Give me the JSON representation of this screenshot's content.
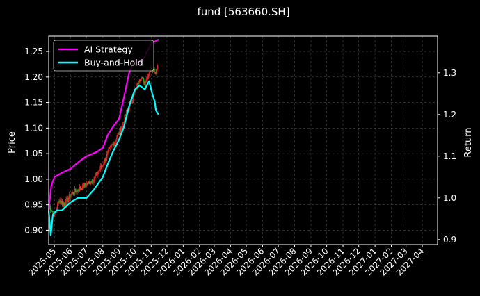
{
  "chart_data": {
    "type": "line",
    "title": "fund [563660.SH]",
    "ylabel": "Price",
    "y2label": "Return",
    "grid": true,
    "legend_position": "top-left",
    "ylim": [
      0.872,
      1.28
    ],
    "y_ticks": [
      "0.90",
      "0.95",
      "1.00",
      "1.05",
      "1.10",
      "1.15",
      "1.20",
      "1.25"
    ],
    "y2lim": [
      0.888,
      1.388
    ],
    "y2_ticks": [
      "0.9",
      "1.0",
      "1.1",
      "1.2",
      "1.3"
    ],
    "x_ticks": [
      "2025-05",
      "2025-06",
      "2025-07",
      "2025-08",
      "2025-09",
      "2025-10",
      "2025-11",
      "2025-12",
      "2026-01",
      "2026-02",
      "2026-03",
      "2026-04",
      "2026-05",
      "2026-06",
      "2026-07",
      "2026-08",
      "2026-09",
      "2026-10",
      "2026-11",
      "2026-12",
      "2027-01",
      "2027-02",
      "2027-03",
      "2027-04"
    ],
    "x_range": [
      "2025-04-20",
      "2027-04-30"
    ],
    "candles": {
      "up_color": "#dd2222",
      "down_color": "#22aa22",
      "dates": [
        "2025-04-20",
        "2025-05-01",
        "2025-05-10",
        "2025-05-20",
        "2025-06-01",
        "2025-06-15",
        "2025-07-01",
        "2025-07-15",
        "2025-08-01",
        "2025-08-15",
        "2025-09-01",
        "2025-09-15",
        "2025-10-01",
        "2025-10-10",
        "2025-10-20",
        "2025-11-01",
        "2025-11-10",
        "2025-11-15"
      ],
      "close": [
        0.95,
        0.93,
        0.96,
        0.95,
        0.97,
        0.98,
        0.99,
        1.0,
        1.03,
        1.06,
        1.09,
        1.13,
        1.17,
        1.2,
        1.19,
        1.22,
        1.21,
        1.23
      ]
    },
    "series": [
      {
        "name": "AI Strategy",
        "color": "#ff00ff",
        "axis": "right",
        "x": [
          "2025-04-20",
          "2025-04-25",
          "2025-05-01",
          "2025-05-15",
          "2025-06-01",
          "2025-06-10",
          "2025-06-20",
          "2025-07-01",
          "2025-07-20",
          "2025-08-01",
          "2025-08-10",
          "2025-08-20",
          "2025-09-01",
          "2025-09-10",
          "2025-09-20",
          "2025-10-01",
          "2025-10-10",
          "2025-10-20",
          "2025-11-01",
          "2025-11-15"
        ],
        "values": [
          0.97,
          1.03,
          1.05,
          1.06,
          1.07,
          1.08,
          1.09,
          1.1,
          1.11,
          1.12,
          1.15,
          1.17,
          1.19,
          1.24,
          1.3,
          1.33,
          1.32,
          1.34,
          1.37,
          1.38
        ]
      },
      {
        "name": "Buy-and-Hold",
        "color": "#00ffff",
        "axis": "right",
        "x": [
          "2025-04-20",
          "2025-04-24",
          "2025-04-28",
          "2025-05-05",
          "2025-05-15",
          "2025-06-01",
          "2025-06-15",
          "2025-07-01",
          "2025-07-15",
          "2025-08-01",
          "2025-08-10",
          "2025-08-20",
          "2025-09-01",
          "2025-09-10",
          "2025-09-20",
          "2025-10-01",
          "2025-10-10",
          "2025-10-20",
          "2025-10-28",
          "2025-11-03",
          "2025-11-08",
          "2025-11-10",
          "2025-11-15"
        ],
        "values": [
          0.97,
          0.91,
          0.96,
          0.97,
          0.97,
          0.99,
          1.0,
          1.0,
          1.02,
          1.05,
          1.08,
          1.11,
          1.14,
          1.17,
          1.22,
          1.26,
          1.27,
          1.26,
          1.28,
          1.25,
          1.23,
          1.21,
          1.2
        ]
      }
    ]
  }
}
